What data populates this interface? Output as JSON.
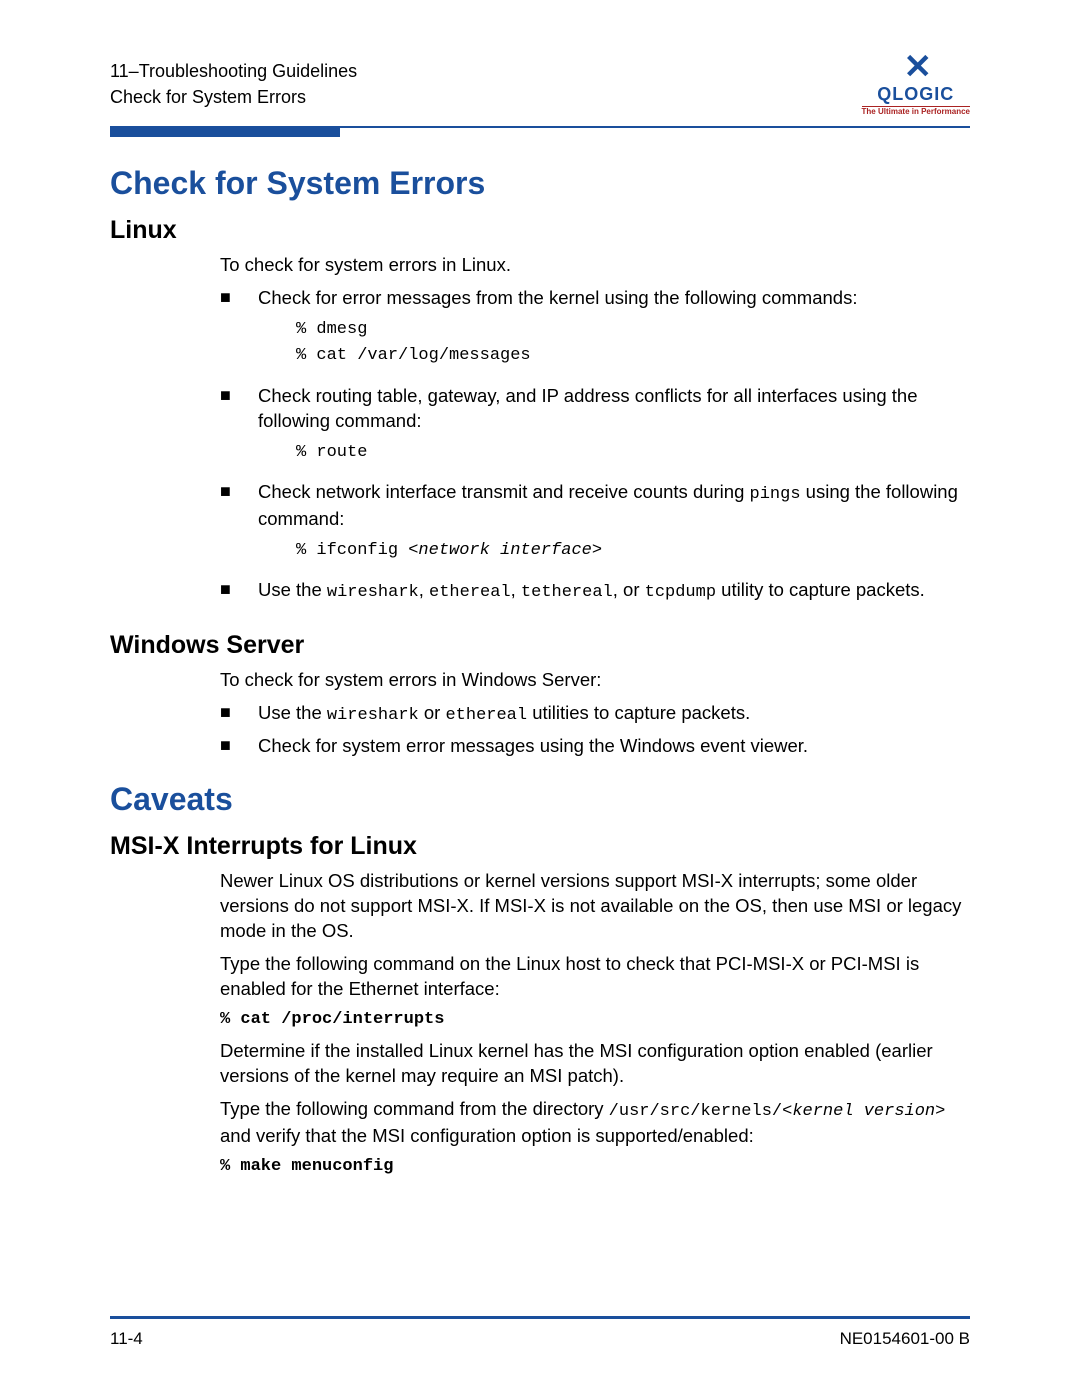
{
  "colors": {
    "brand_blue": "#1a4f9c",
    "brand_red": "#aa2222",
    "text": "#000000",
    "background": "#ffffff"
  },
  "header": {
    "line1": "11–Troubleshooting Guidelines",
    "line2": "Check for System Errors"
  },
  "logo": {
    "name": "QLOGIC",
    "tagline": "The Ultimate in Performance"
  },
  "s1": {
    "title": "Check for System Errors",
    "linux": {
      "heading": "Linux",
      "intro": "To check for system errors in Linux.",
      "b1_pre": "Check for error messages from the kernel using the following commands:",
      "b1_code": "% dmesg\n% cat /var/log/messages",
      "b2_pre": "Check routing table, gateway, and IP address conflicts for all interfaces using the following command:",
      "b2_code": "% route",
      "b3_pre_a": "Check network interface transmit and receive counts during ",
      "b3_pings": "pings",
      "b3_pre_b": " using the following command:",
      "b3_code_a": "% ifconfig ",
      "b3_code_b": "<network interface>",
      "b4_a": "Use the ",
      "b4_w": "wireshark",
      "b4_c1": ", ",
      "b4_e": "ethereal",
      "b4_c2": ", ",
      "b4_t": "tethereal",
      "b4_c3": ", or ",
      "b4_d": "tcpdump",
      "b4_end": " utility to capture packets."
    },
    "win": {
      "heading": "Windows Server",
      "intro": "To check for system errors in Windows Server:",
      "b1_a": "Use the ",
      "b1_w": "wireshark",
      "b1_or": " or ",
      "b1_e": "ethereal",
      "b1_end": " utilities to capture packets.",
      "b2": "Check for system error messages using the Windows event viewer."
    }
  },
  "s2": {
    "title": "Caveats",
    "msi": {
      "heading": "MSI-X Interrupts for Linux",
      "p1": "Newer Linux OS distributions or kernel versions support MSI-X interrupts; some older versions do not support MSI-X. If MSI-X is not available on the OS, then use MSI or legacy mode in the OS.",
      "p2": "Type the following command on the Linux host to check that PCI-MSI-X or PCI-MSI is enabled for the Ethernet interface:",
      "c1": "% cat /proc/interrupts",
      "p3": "Determine if the installed Linux kernel has the MSI configuration option enabled (earlier versions of the kernel may require an MSI patch).",
      "p4_a": "Type the following command from the directory ",
      "p4_path": "/usr/src/kernels/<",
      "p4_kv": "kernel version",
      "p4_gt": ">",
      "p4_b": " and verify that the MSI configuration option is supported/enabled:",
      "c2": "% make menuconfig"
    }
  },
  "footer": {
    "page": "11-4",
    "docid": "NE0154601-00  B"
  }
}
